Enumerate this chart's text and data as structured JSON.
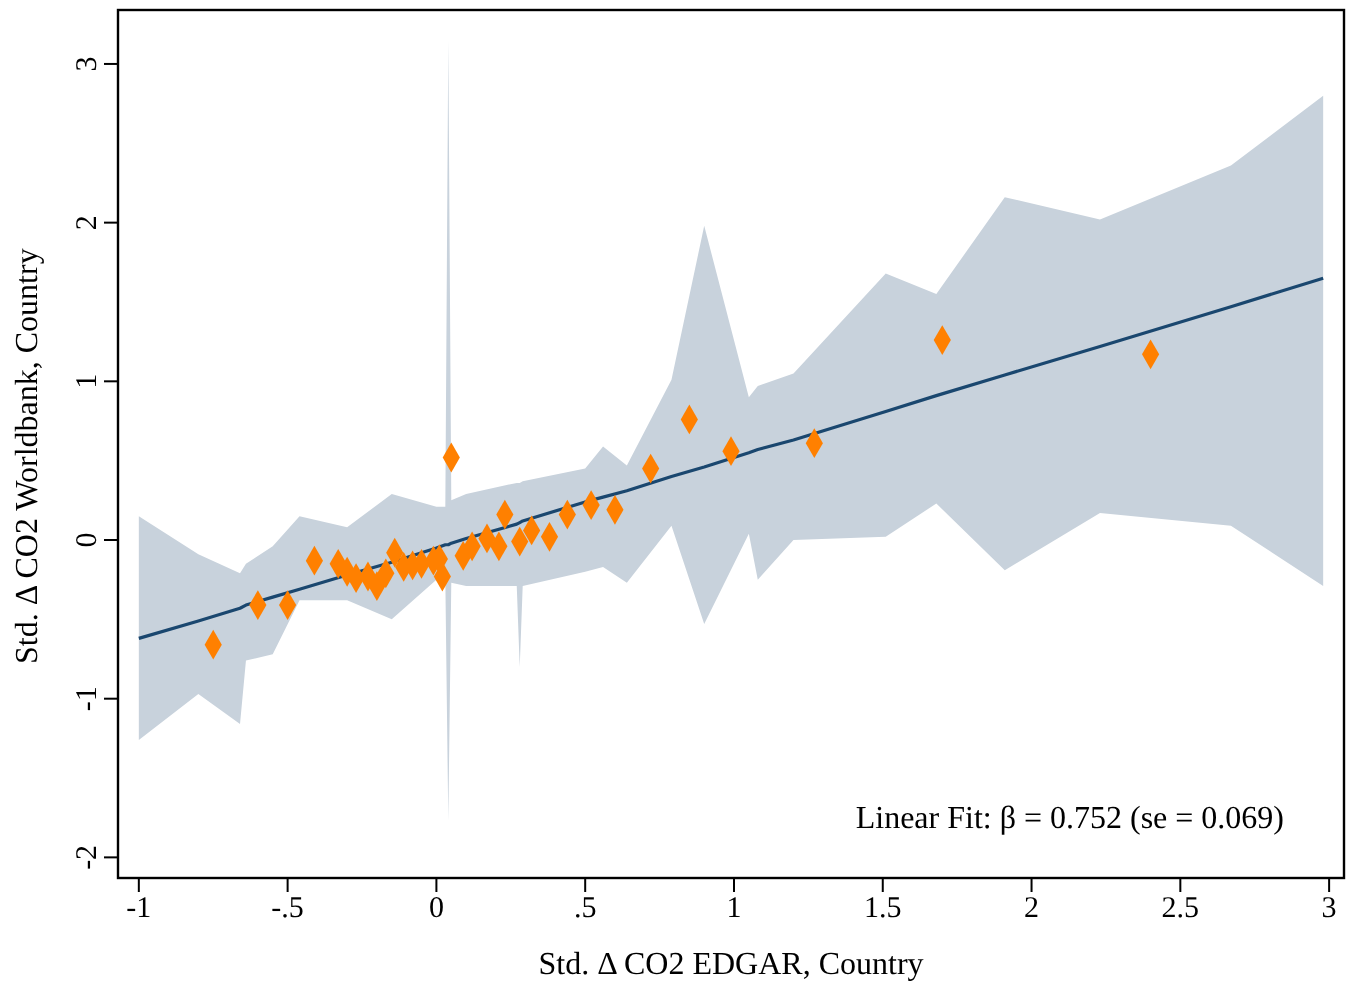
{
  "chart_data": {
    "type": "scatter",
    "xlabel": "Std. Δ CO2 EDGAR, Country",
    "ylabel": "Std. Δ CO2 Worldbank, Country",
    "annotations": [
      "Linear Fit: β = 0.752 (se = 0.069)"
    ],
    "xlim": [
      -1.07,
      3.05
    ],
    "xticks": [
      -1,
      {
        "value": -0.5,
        "label": "-.5"
      },
      0,
      {
        "value": 0.5,
        "label": ".5"
      },
      1,
      1.5,
      2,
      2.5,
      3
    ],
    "ylim": [
      -2.13,
      3.34
    ],
    "yticks": [
      -2,
      -1,
      0,
      1,
      2,
      3
    ],
    "series": [
      {
        "type": "line",
        "color": "#1a476f",
        "line_style": "solid",
        "marker": "none",
        "x": [
          -1,
          -0.8,
          -0.66,
          -0.64,
          -0.55,
          -0.46,
          -0.3,
          -0.15,
          0,
          0.03,
          0.04,
          0.05,
          0.1,
          0.27,
          0.28,
          0.29,
          0.5,
          0.56,
          0.64,
          0.79,
          0.9,
          1.05,
          1.08,
          1.2,
          1.51,
          1.68,
          1.91,
          2.23,
          2.67,
          2.98
        ],
        "values": [
          -0.62,
          -0.51,
          -0.43,
          -0.41,
          -0.36,
          -0.31,
          -0.22,
          -0.14,
          -0.05,
          -0.03,
          -0.03,
          -0.02,
          0.01,
          0.1,
          0.11,
          0.12,
          0.24,
          0.27,
          0.31,
          0.4,
          0.46,
          0.55,
          0.57,
          0.63,
          0.81,
          0.91,
          1.04,
          1.22,
          1.47,
          1.65
        ],
        "upper": [
          0.15,
          -0.09,
          -0.21,
          -0.15,
          -0.04,
          0.15,
          0.08,
          0.29,
          0.21,
          0.21,
          3.15,
          0.25,
          0.29,
          0.36,
          0.36,
          0.37,
          0.45,
          0.59,
          0.47,
          1.01,
          1.98,
          0.9,
          0.97,
          1.05,
          1.68,
          1.55,
          2.16,
          2.02,
          2.36,
          2.8
        ],
        "lower": [
          -1.26,
          -0.97,
          -1.16,
          -0.76,
          -0.72,
          -0.38,
          -0.38,
          -0.5,
          -0.25,
          -0.25,
          -1.77,
          -0.27,
          -0.29,
          -0.29,
          -0.8,
          -0.29,
          -0.2,
          -0.17,
          -0.27,
          0.09,
          -0.53,
          0.04,
          -0.25,
          0,
          0.02,
          0.23,
          -0.19,
          0.17,
          0.09,
          -0.29
        ]
      },
      {
        "color": "#ff8000",
        "marker": "diamond",
        "x": [
          -0.75,
          -0.6,
          -0.5,
          -0.41,
          -0.33,
          -0.3,
          -0.27,
          -0.23,
          -0.2,
          -0.17,
          -0.14,
          -0.11,
          -0.08,
          -0.05,
          -0.01,
          0.01,
          0.02,
          0.05,
          0.09,
          0.12,
          0.17,
          0.21,
          0.23,
          0.28,
          0.32,
          0.38,
          0.44,
          0.52,
          0.6,
          0.72,
          0.85,
          0.99,
          1.27,
          1.7,
          2.4
        ],
        "values": [
          -0.66,
          -0.41,
          -0.41,
          -0.13,
          -0.15,
          -0.2,
          -0.24,
          -0.23,
          -0.29,
          -0.21,
          -0.08,
          -0.17,
          -0.16,
          -0.15,
          -0.13,
          -0.12,
          -0.23,
          0.52,
          -0.1,
          -0.04,
          0.01,
          -0.04,
          0.16,
          -0.01,
          0.06,
          0.02,
          0.16,
          0.22,
          0.19,
          0.45,
          0.76,
          0.56,
          0.61,
          1.26,
          1.17
        ]
      }
    ]
  }
}
